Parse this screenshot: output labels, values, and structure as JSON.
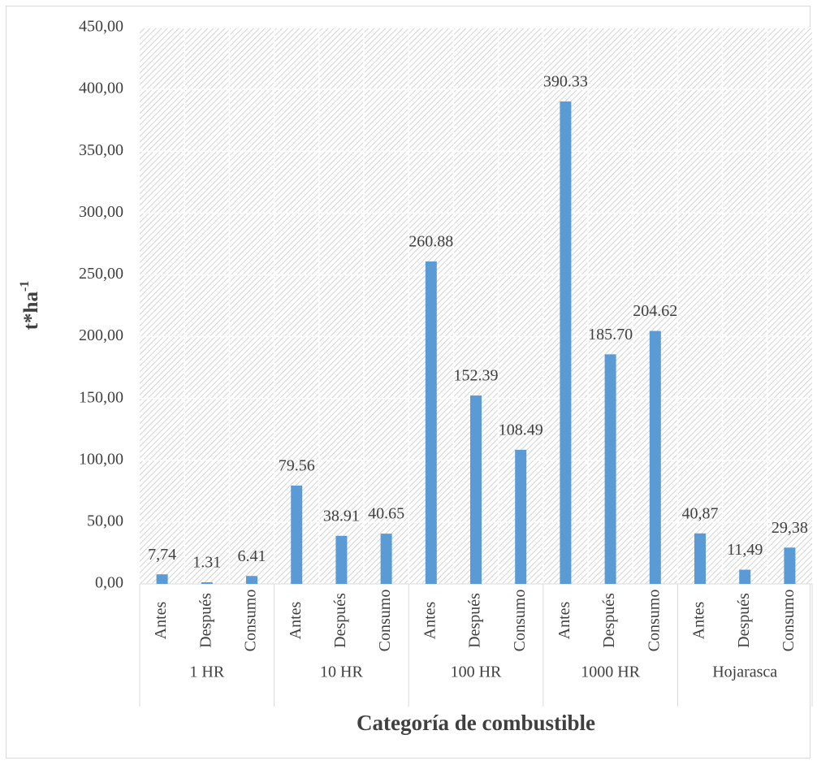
{
  "chart_data": {
    "type": "bar",
    "y_label": "t*ha",
    "y_label_sup": "-1",
    "x_label": "Categoría de combustible",
    "groups": [
      "1 HR",
      "10 HR",
      "100 HR",
      "1000 HR",
      "Hojarasca"
    ],
    "categories": [
      "Antes",
      "Después",
      "Consumo",
      "Antes",
      "Después",
      "Consumo",
      "Antes",
      "Después",
      "Consumo",
      "Antes",
      "Después",
      "Consumo",
      "Antes",
      "Después",
      "Consumo"
    ],
    "values": [
      7.74,
      1.31,
      6.41,
      79.56,
      38.91,
      40.65,
      260.88,
      152.39,
      108.49,
      390.33,
      185.7,
      204.62,
      40.87,
      11.49,
      29.38
    ],
    "value_labels": [
      "7,74",
      "1.31",
      "6.41",
      "79.56",
      "38.91",
      "40.65",
      "260.88",
      "152.39",
      "108.49",
      "390.33",
      "185.70",
      "204.62",
      "40,87",
      "11,49",
      "29,38"
    ],
    "color": "#5b9bd5",
    "ylim": [
      0,
      450
    ],
    "yticks": [
      {
        "value": 0,
        "label": "0,00"
      },
      {
        "value": 50,
        "label": "50,00"
      },
      {
        "value": 100,
        "label": "100,00"
      },
      {
        "value": 150,
        "label": "150,00"
      },
      {
        "value": 200,
        "label": "200,00"
      },
      {
        "value": 250,
        "label": "250,00"
      },
      {
        "value": 300,
        "label": "300,00"
      },
      {
        "value": 350,
        "label": "350,00"
      },
      {
        "value": 400,
        "label": "400,00"
      },
      {
        "value": 450,
        "label": "450,00"
      }
    ],
    "grid": true
  }
}
